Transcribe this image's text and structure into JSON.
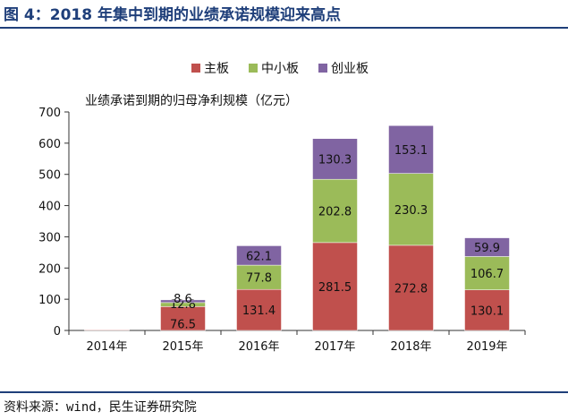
{
  "figure": {
    "title": "图 4：2018 年集中到期的业绩承诺规模迎来高点",
    "source": "资料来源：wind，民生证券研究院"
  },
  "chart_data": {
    "type": "bar",
    "stacked": true,
    "unit_label": "业绩承诺到期的归母净利规模（亿元）",
    "categories": [
      "2014年",
      "2015年",
      "2016年",
      "2017年",
      "2018年",
      "2019年"
    ],
    "series": [
      {
        "name": "主板",
        "color": "#c0504d",
        "values": [
          2,
          76.5,
          131.4,
          281.5,
          272.8,
          130.1
        ],
        "labels": [
          "",
          "76.5",
          "131.4",
          "281.5",
          "272.8",
          "130.1"
        ]
      },
      {
        "name": "中小板",
        "color": "#9bbb59",
        "values": [
          0,
          12.8,
          77.8,
          202.8,
          230.3,
          106.7
        ],
        "labels": [
          "",
          "12.8",
          "77.8",
          "202.8",
          "230.3",
          "106.7"
        ]
      },
      {
        "name": "创业板",
        "color": "#8064a2",
        "values": [
          0,
          8.6,
          62.1,
          130.3,
          153.1,
          59.9
        ],
        "labels": [
          "",
          "8.6",
          "62.1",
          "130.3",
          "153.1",
          "59.9"
        ]
      }
    ],
    "ylim": [
      0,
      700
    ],
    "yticks": [
      "0",
      "100",
      "200",
      "300",
      "400",
      "500",
      "600",
      "700"
    ],
    "legend": "top-center",
    "grid": false
  }
}
